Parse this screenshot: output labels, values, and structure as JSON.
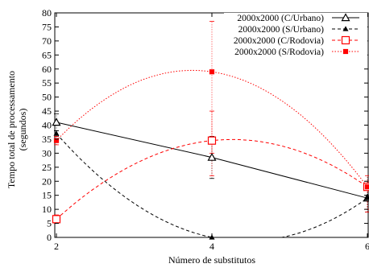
{
  "chart_data": {
    "type": "line",
    "xlabel": "Número de substitutos",
    "ylabel_lines": [
      "Tempo total de processamento",
      "(segundos)"
    ],
    "x": [
      2,
      4,
      6
    ],
    "xlim": [
      2,
      6
    ],
    "ylim": [
      0,
      80
    ],
    "x_ticks": [
      2,
      4,
      6
    ],
    "y_ticks": [
      0,
      5,
      10,
      15,
      20,
      25,
      30,
      35,
      40,
      45,
      50,
      55,
      60,
      65,
      70,
      75,
      80
    ],
    "grid": false,
    "legend_position": "top-right",
    "series": [
      {
        "name": "2000x2000 (C/Urbano)",
        "color": "#000000",
        "line": "solid",
        "marker": "open-triangle",
        "values": [
          41,
          28.5,
          14
        ],
        "error_low": [
          38,
          21,
          9
        ],
        "error_high": [
          44,
          36,
          19
        ]
      },
      {
        "name": "2000x2000 (S/Urbano)",
        "color": "#000000",
        "line": "dashed",
        "marker": "filled-triangle",
        "values": [
          37,
          0,
          14
        ],
        "error_low": [
          36,
          0,
          13
        ],
        "error_high": [
          38,
          0,
          15
        ]
      },
      {
        "name": "2000x2000 (C/Rodovia)",
        "color": "#ff0000",
        "line": "dashed",
        "marker": "open-square",
        "values": [
          6.5,
          34.5,
          18
        ],
        "error_low": [
          5,
          22,
          10
        ],
        "error_high": [
          8,
          45,
          22
        ]
      },
      {
        "name": "2000x2000 (S/Rodovia)",
        "color": "#ff0000",
        "line": "dotted",
        "marker": "filled-square",
        "values": [
          34.5,
          59,
          18
        ],
        "error_low": [
          33,
          30,
          9
        ],
        "error_high": [
          36,
          77,
          20
        ]
      }
    ]
  }
}
